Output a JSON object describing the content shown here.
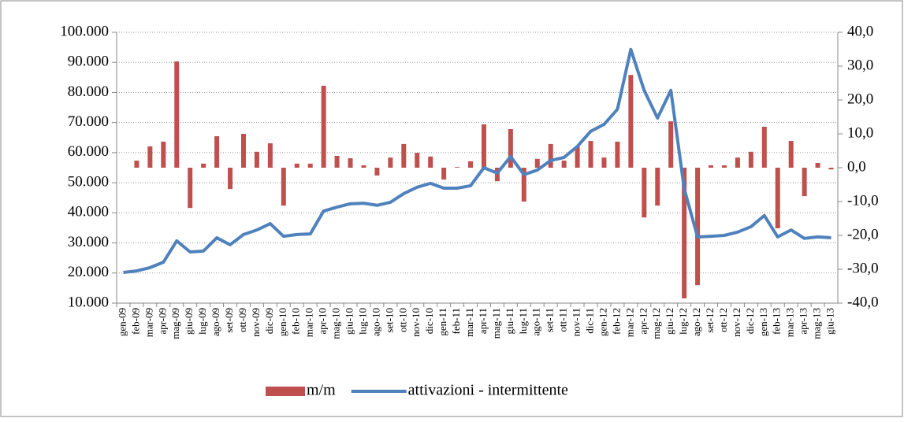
{
  "chart_data": {
    "type": "bar-line",
    "categories": [
      "gen-09",
      "feb-09",
      "mar-09",
      "apr-09",
      "mag-09",
      "giu-09",
      "lug-09",
      "ago-09",
      "set-09",
      "ott-09",
      "nov-09",
      "dic-09",
      "gen-10",
      "feb-10",
      "mar-10",
      "apr-10",
      "mag-10",
      "giu-10",
      "lug-10",
      "ago-10",
      "set-10",
      "ott-10",
      "nov-10",
      "dic-10",
      "gen-11",
      "feb-11",
      "mar-11",
      "apr-11",
      "mag-11",
      "giu-11",
      "lug-11",
      "ago-11",
      "set-11",
      "ott-11",
      "nov-11",
      "dic-11",
      "gen-12",
      "feb-12",
      "mar-12",
      "apr-12",
      "mag-12",
      "giu-12",
      "lug-12",
      "ago-12",
      "set-12",
      "ott-12",
      "nov-12",
      "dic-12",
      "gen-13",
      "feb-13",
      "mar-13",
      "apr-13",
      "mag-13",
      "giu-13"
    ],
    "series": [
      {
        "name": "m/m",
        "type": "bar",
        "axis": "y2",
        "color": "#c0504d",
        "values": [
          null,
          2.1,
          6.3,
          7.7,
          31.4,
          -11.9,
          1.2,
          9.3,
          -6.3,
          10.0,
          4.7,
          7.2,
          -11.2,
          1.2,
          1.2,
          24.2,
          3.5,
          2.8,
          0.7,
          -2.3,
          3.0,
          7.0,
          4.4,
          3.3,
          -3.5,
          0.2,
          1.9,
          12.8,
          -4.0,
          11.4,
          -10.0,
          2.6,
          7.0,
          2.1,
          6.3,
          7.9,
          3.0,
          7.7,
          27.4,
          -14.7,
          -11.2,
          13.7,
          -38.6,
          -34.7,
          0.7,
          0.7,
          3.0,
          4.7,
          12.1,
          -17.9,
          7.9,
          -8.4,
          1.4,
          -0.5
        ]
      },
      {
        "name": "attivazioni - intermittente",
        "type": "line",
        "color": "#4f81bd",
        "values": [
          20200,
          20700,
          21800,
          23600,
          30700,
          27000,
          27300,
          31700,
          29400,
          32800,
          34300,
          36400,
          32200,
          32800,
          33000,
          40600,
          41900,
          43000,
          43200,
          42500,
          43500,
          46400,
          48500,
          49800,
          48200,
          48200,
          49000,
          55000,
          53200,
          58700,
          52700,
          54200,
          57400,
          58400,
          62100,
          67100,
          69400,
          74400,
          94300,
          80700,
          71500,
          80700,
          48000,
          32000,
          32200,
          32500,
          33600,
          35400,
          39100,
          32000,
          34300,
          31500,
          32000,
          31700
        ]
      }
    ],
    "ylim": [
      10000,
      100000
    ],
    "yticks": [
      {
        "value": 10000,
        "label": "10.000"
      },
      {
        "value": 20000,
        "label": "20.000"
      },
      {
        "value": 30000,
        "label": "30.000"
      },
      {
        "value": 40000,
        "label": "40.000"
      },
      {
        "value": 50000,
        "label": "50.000"
      },
      {
        "value": 60000,
        "label": "60.000"
      },
      {
        "value": 70000,
        "label": "70.000"
      },
      {
        "value": 80000,
        "label": "80.000"
      },
      {
        "value": 90000,
        "label": "90.000"
      },
      {
        "value": 100000,
        "label": "100.000"
      }
    ],
    "y2lim": [
      -40,
      40
    ],
    "y2ticks": [
      {
        "value": -40,
        "label": "-40,0"
      },
      {
        "value": -30,
        "label": "-30,0"
      },
      {
        "value": -20,
        "label": "-20,0"
      },
      {
        "value": -10,
        "label": "-10,0"
      },
      {
        "value": 0,
        "label": "0,0"
      },
      {
        "value": 10,
        "label": "10,0"
      },
      {
        "value": 20,
        "label": "20,0"
      },
      {
        "value": 30,
        "label": "30,0"
      },
      {
        "value": 40,
        "label": "40,0"
      }
    ],
    "grid": true,
    "legend": "bottom"
  }
}
